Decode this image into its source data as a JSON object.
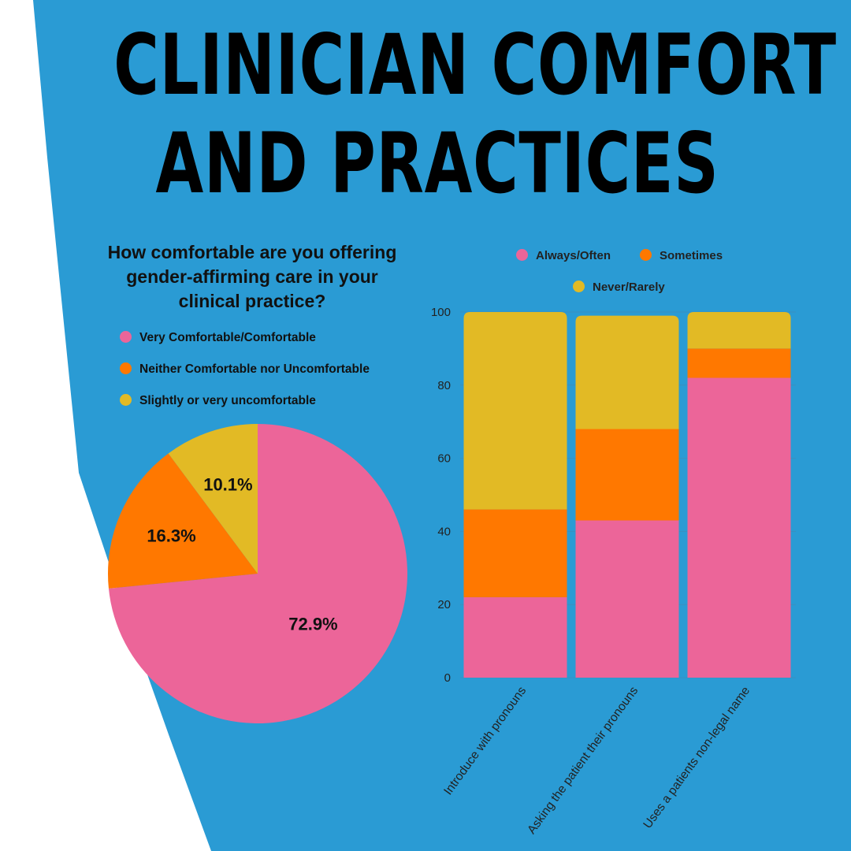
{
  "header": {
    "title_line1": "CLINICIAN COMFORT",
    "title_line2": "AND PRACTICES"
  },
  "colors": {
    "background_blue": "#2A9BD4",
    "pink": "#EC6599",
    "orange": "#FF7800",
    "yellow": "#E2BA25",
    "gridline": "#3a8fc0"
  },
  "pie": {
    "question": "How comfortable are you offering gender-affirming care in your clinical practice?",
    "legend": [
      {
        "label": "Very Comfortable/Comfortable",
        "color": "#EC6599"
      },
      {
        "label": "Neither Comfortable nor Uncomfortable",
        "color": "#FF7800"
      },
      {
        "label": "Slightly or very uncomfortable",
        "color": "#E2BA25"
      }
    ]
  },
  "bars": {
    "legend": [
      {
        "label": "Always/Often",
        "color": "#EC6599"
      },
      {
        "label": "Sometimes",
        "color": "#FF7800"
      },
      {
        "label": "Never/Rarely",
        "color": "#E2BA25"
      }
    ]
  },
  "chart_data": [
    {
      "type": "pie",
      "title": "How comfortable are you offering gender-affirming care in your clinical practice?",
      "slices": [
        {
          "label": "Very Comfortable/Comfortable",
          "value": 72.9,
          "display": "72.9%",
          "color": "#EC6599"
        },
        {
          "label": "Neither Comfortable nor Uncomfortable",
          "value": 16.3,
          "display": "16.3%",
          "color": "#FF7800"
        },
        {
          "label": "Slightly or very uncomfortable",
          "value": 10.1,
          "display": "10.1%",
          "color": "#E2BA25"
        }
      ],
      "legend_position": "top"
    },
    {
      "type": "bar",
      "stacked": true,
      "categories": [
        "Introduce with pronouns",
        "Asking the patient their pronouns",
        "Uses a patients non-legal name"
      ],
      "series": [
        {
          "name": "Always/Often",
          "values": [
            22,
            43,
            82
          ],
          "color": "#EC6599"
        },
        {
          "name": "Sometimes",
          "values": [
            24,
            25,
            8
          ],
          "color": "#FF7800"
        },
        {
          "name": "Never/Rarely",
          "values": [
            54,
            31,
            10
          ],
          "color": "#E2BA25"
        }
      ],
      "ylim": [
        0,
        100
      ],
      "yticks": [
        "0",
        "20",
        "40",
        "60",
        "80",
        "100"
      ],
      "grid": true,
      "legend_position": "top"
    }
  ]
}
